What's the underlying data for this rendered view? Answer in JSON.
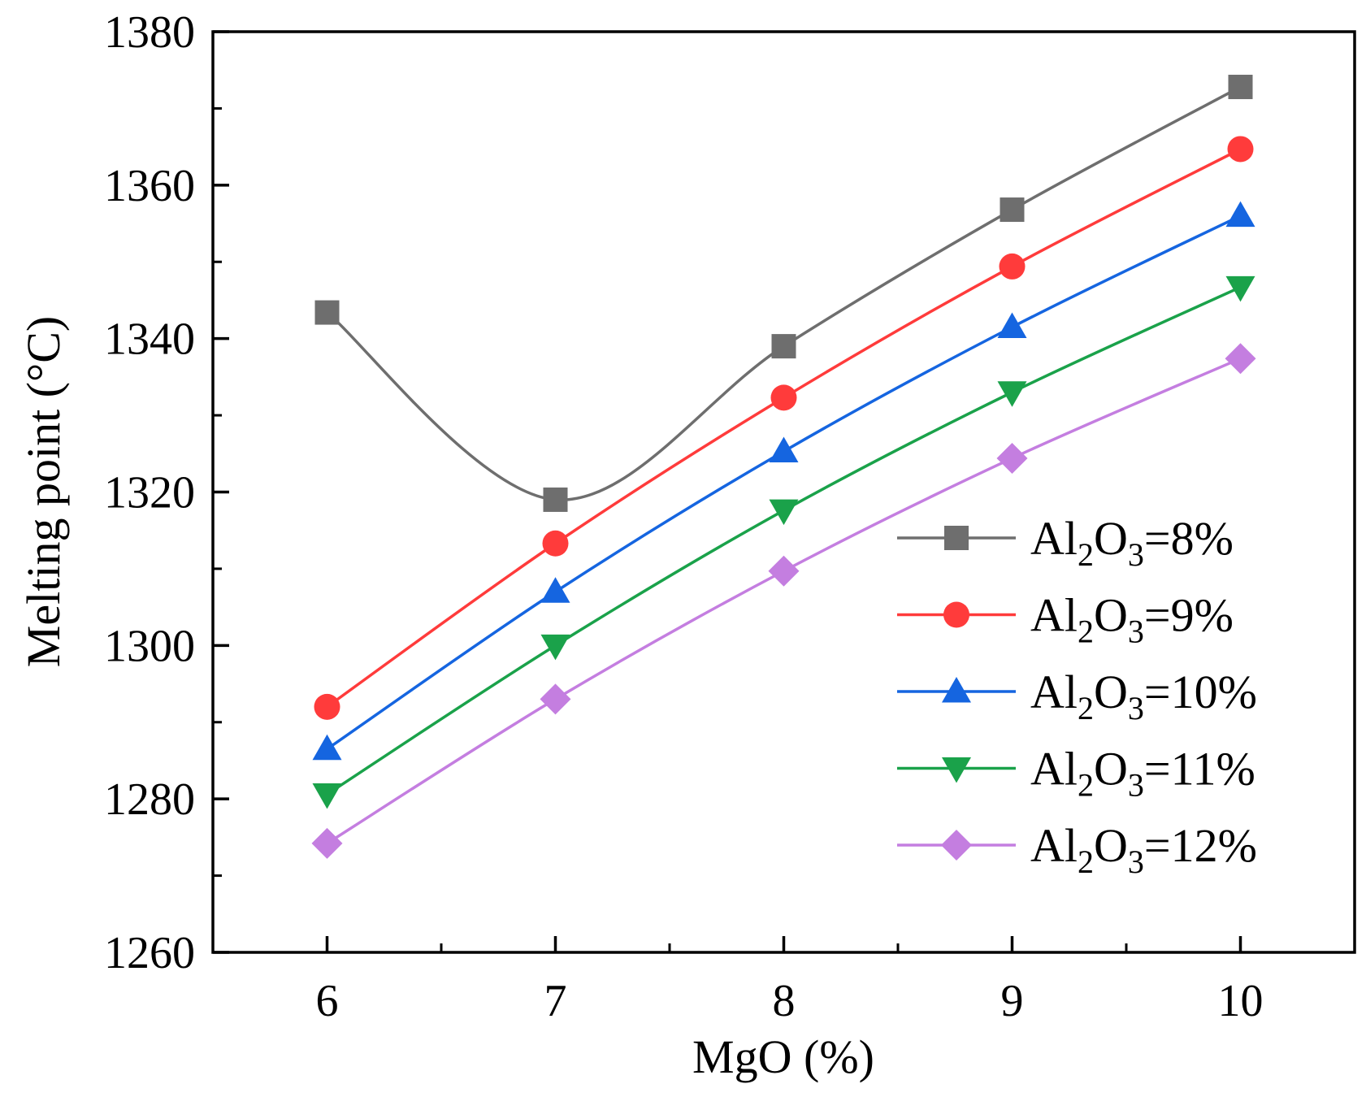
{
  "chart_data": {
    "type": "line",
    "xlabel": "MgO (%)",
    "ylabel": "Melting point (°C)",
    "xlim": [
      5.5,
      10.5
    ],
    "ylim": [
      1260,
      1380
    ],
    "x": [
      6,
      7,
      8,
      9,
      10
    ],
    "x_ticks": [
      "6",
      "7",
      "8",
      "9",
      "10"
    ],
    "y_ticks": [
      "1260",
      "1280",
      "1300",
      "1320",
      "1340",
      "1360",
      "1380"
    ],
    "legend_position": "lower-right",
    "grid": false,
    "series": [
      {
        "name": "Al2O3=8%",
        "label_parts": [
          "Al",
          "2",
          "O",
          "3",
          "=8%"
        ],
        "values": [
          1343.4,
          1319.0,
          1339.0,
          1356.8,
          1372.8
        ],
        "color": "#6e6e6e",
        "marker": "square"
      },
      {
        "name": "Al2O3=9%",
        "label_parts": [
          "Al",
          "2",
          "O",
          "3",
          "=9%"
        ],
        "values": [
          1292.0,
          1313.3,
          1332.3,
          1349.4,
          1364.7
        ],
        "color": "#ff3b3b",
        "marker": "circle"
      },
      {
        "name": "Al2O3=10%",
        "label_parts": [
          "Al",
          "2",
          "O",
          "3",
          "=10%"
        ],
        "values": [
          1286.5,
          1307.0,
          1325.3,
          1341.5,
          1356.0
        ],
        "color": "#1565e0",
        "marker": "triangle-up"
      },
      {
        "name": "Al2O3=11%",
        "label_parts": [
          "Al",
          "2",
          "O",
          "3",
          "=11%"
        ],
        "values": [
          1280.6,
          1300.0,
          1317.6,
          1333.0,
          1346.7
        ],
        "color": "#1aa24a",
        "marker": "triangle-down"
      },
      {
        "name": "Al2O3=12%",
        "label_parts": [
          "Al",
          "2",
          "O",
          "3",
          "=12%"
        ],
        "values": [
          1274.2,
          1293.0,
          1309.7,
          1324.4,
          1337.4
        ],
        "color": "#c47ee0",
        "marker": "diamond"
      }
    ]
  }
}
